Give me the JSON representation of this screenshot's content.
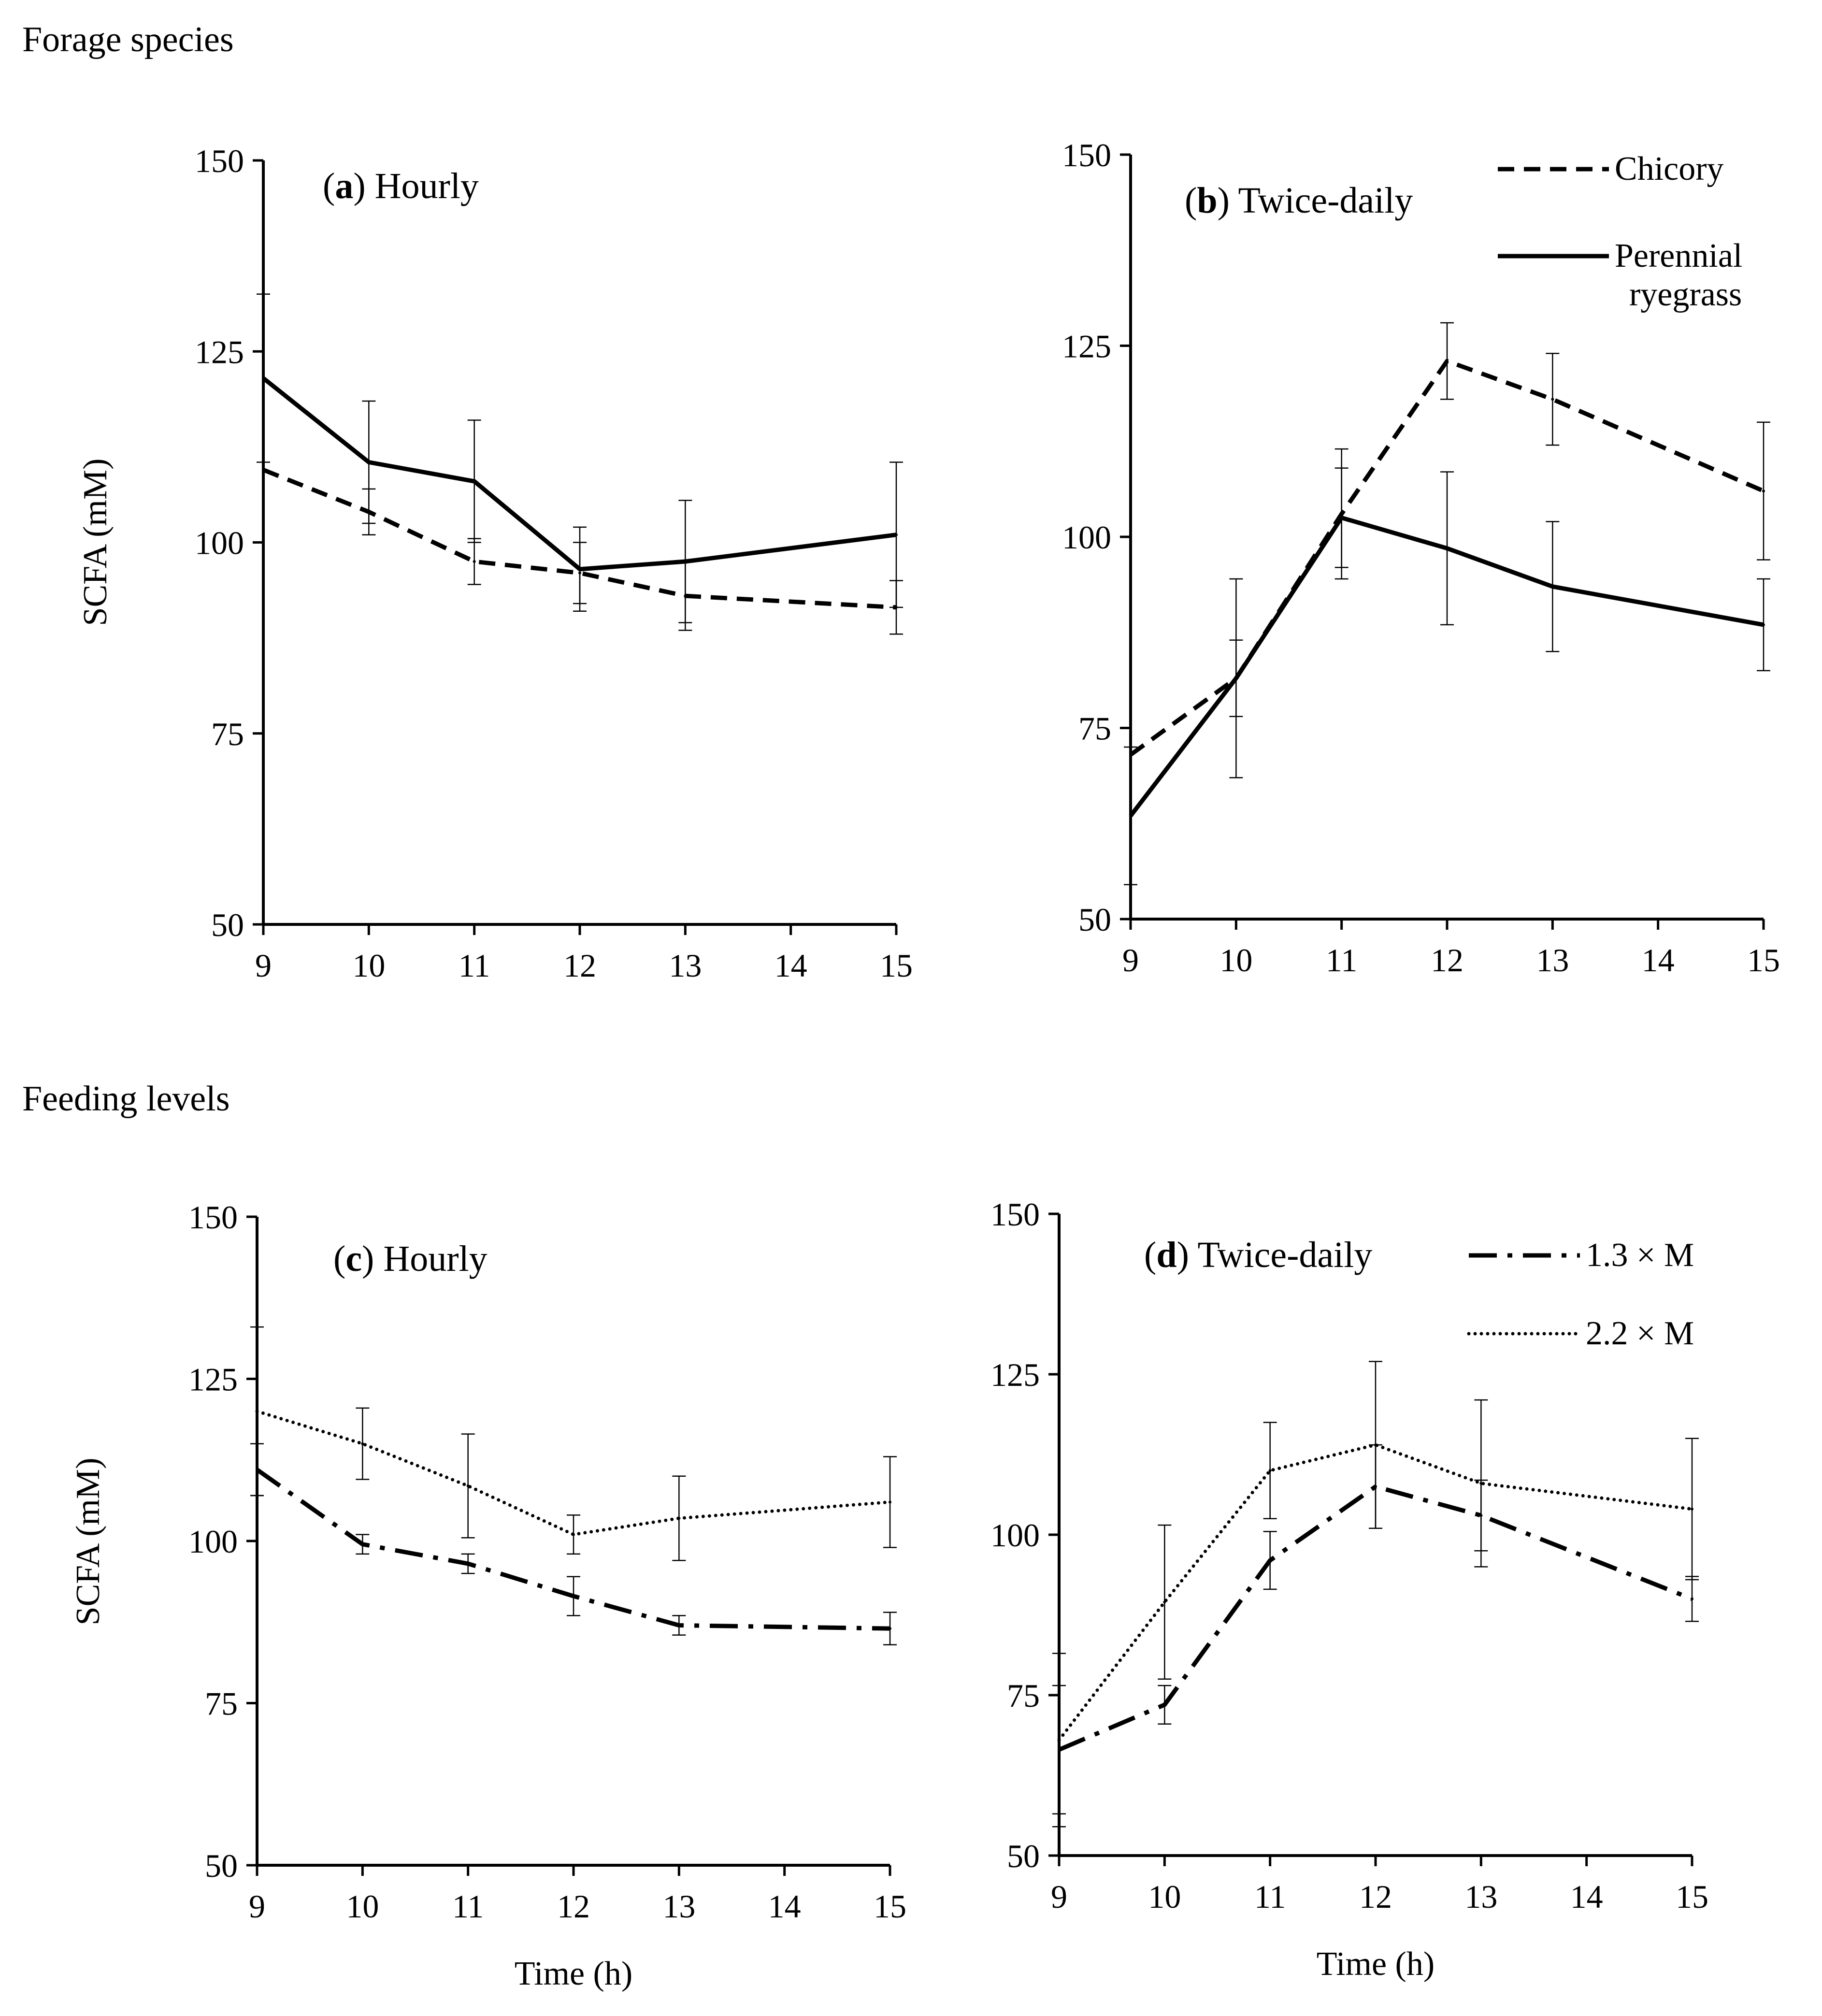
{
  "sections": [
    {
      "title": "Forage species"
    },
    {
      "title": "Feeding levels"
    }
  ],
  "chart_data": [
    {
      "type": "line",
      "panel": "a",
      "title": "Hourly",
      "ylabel": "SCFA (mM)",
      "xlabel": "",
      "x": [
        9,
        10,
        11,
        12,
        13,
        14,
        15
      ],
      "xlim": [
        9,
        15
      ],
      "ylim": [
        50,
        150
      ],
      "yticks": [
        50,
        75,
        100,
        125,
        150
      ],
      "series": [
        {
          "name": "Chicory",
          "style": "dashed",
          "x": [
            9,
            10,
            11,
            12,
            13,
            15
          ],
          "values": [
            109.5,
            104,
            97.5,
            96,
            93,
            91.5
          ],
          "errors": [
            null,
            3,
            3,
            4,
            4.5,
            3.5
          ]
        },
        {
          "name": "Perennial ryegrass",
          "style": "solid",
          "x": [
            9,
            10,
            11,
            12,
            13,
            15
          ],
          "values": [
            121.5,
            110.5,
            108,
            96.5,
            97.5,
            101
          ],
          "errors": [
            11,
            8,
            8,
            5.5,
            8,
            9.5
          ]
        }
      ]
    },
    {
      "type": "line",
      "panel": "b",
      "title": "Twice-daily",
      "ylabel": "",
      "xlabel": "",
      "x": [
        9,
        10,
        11,
        12,
        13,
        14,
        15
      ],
      "xlim": [
        9,
        15
      ],
      "ylim": [
        50,
        150
      ],
      "yticks": [
        50,
        75,
        100,
        125,
        150
      ],
      "legend": [
        "Chicory",
        "Perennial ryegrass"
      ],
      "series": [
        {
          "name": "Chicory",
          "style": "dashed",
          "x": [
            9,
            10,
            11,
            12,
            13,
            15
          ],
          "values": [
            71.5,
            81.5,
            103,
            123,
            118,
            106
          ],
          "errors": [
            null,
            5,
            8.5,
            5,
            6,
            9
          ]
        },
        {
          "name": "Perennial ryegrass",
          "style": "solid",
          "x": [
            9,
            10,
            11,
            12,
            13,
            15
          ],
          "values": [
            63.5,
            81.5,
            102.5,
            98.5,
            93.5,
            88.5
          ],
          "errors": [
            9,
            13,
            6.5,
            10,
            8.5,
            6
          ]
        }
      ]
    },
    {
      "type": "line",
      "panel": "c",
      "title": "Hourly",
      "ylabel": "SCFA (mM)",
      "xlabel": "Time (h)",
      "x": [
        9,
        10,
        11,
        12,
        13,
        14,
        15
      ],
      "xlim": [
        9,
        15
      ],
      "ylim": [
        50,
        150
      ],
      "yticks": [
        50,
        75,
        100,
        125,
        150
      ],
      "series": [
        {
          "name": "1.3 × M",
          "style": "dashdot",
          "x": [
            9,
            10,
            11,
            12,
            13,
            15
          ],
          "values": [
            111,
            99.5,
            96.5,
            91.5,
            87,
            86.5
          ],
          "errors": [
            4,
            1.5,
            1.5,
            3,
            1.5,
            2.5
          ]
        },
        {
          "name": "2.2 × M",
          "style": "dotted",
          "x": [
            9,
            10,
            11,
            12,
            13,
            15
          ],
          "values": [
            120,
            115,
            108.5,
            101,
            103.5,
            106
          ],
          "errors": [
            13,
            5.5,
            8,
            3,
            6.5,
            7
          ]
        }
      ]
    },
    {
      "type": "line",
      "panel": "d",
      "title": "Twice-daily",
      "ylabel": "",
      "xlabel": "Time (h)",
      "x": [
        9,
        10,
        11,
        12,
        13,
        14,
        15
      ],
      "xlim": [
        9,
        15
      ],
      "ylim": [
        50,
        150
      ],
      "yticks": [
        50,
        75,
        100,
        125,
        150
      ],
      "legend": [
        "1.3 × M",
        "2.2 × M"
      ],
      "series": [
        {
          "name": "1.3 × M",
          "style": "dashdot",
          "x": [
            9,
            10,
            11,
            12,
            13,
            15
          ],
          "values": [
            66.5,
            73.5,
            96,
            107.5,
            103,
            90
          ],
          "errors": [
            10,
            3,
            4.5,
            6.5,
            5.5,
            3.5
          ]
        },
        {
          "name": "2.2 × M",
          "style": "dotted",
          "x": [
            9,
            10,
            11,
            12,
            13,
            15
          ],
          "values": [
            68,
            89.5,
            110,
            114,
            108,
            104
          ],
          "errors": [
            13.5,
            12,
            7.5,
            13,
            13,
            11
          ]
        }
      ]
    }
  ]
}
